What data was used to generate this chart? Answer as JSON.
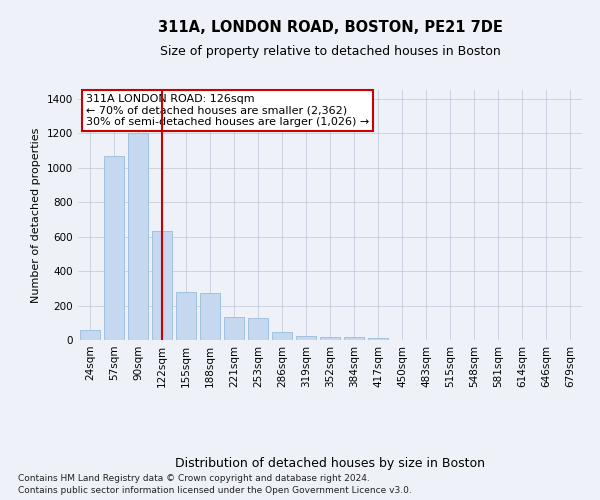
{
  "title1": "311A, LONDON ROAD, BOSTON, PE21 7DE",
  "title2": "Size of property relative to detached houses in Boston",
  "xlabel": "Distribution of detached houses by size in Boston",
  "ylabel": "Number of detached properties",
  "categories": [
    "24sqm",
    "57sqm",
    "90sqm",
    "122sqm",
    "155sqm",
    "188sqm",
    "221sqm",
    "253sqm",
    "286sqm",
    "319sqm",
    "352sqm",
    "384sqm",
    "417sqm",
    "450sqm",
    "483sqm",
    "515sqm",
    "548sqm",
    "581sqm",
    "614sqm",
    "646sqm",
    "679sqm"
  ],
  "values": [
    60,
    1070,
    1200,
    630,
    280,
    275,
    135,
    130,
    45,
    25,
    15,
    20,
    10,
    0,
    0,
    0,
    0,
    0,
    0,
    0,
    0
  ],
  "bar_color": "#c5d8f0",
  "bar_edge_color": "#8ab4d8",
  "marker_label": "311A LONDON ROAD: 126sqm",
  "annotation_line1": "← 70% of detached houses are smaller (2,362)",
  "annotation_line2": "30% of semi-detached houses are larger (1,026) →",
  "annotation_box_color": "#ffffff",
  "annotation_box_edge": "#cc0000",
  "marker_line_color": "#cc0000",
  "marker_line_index": 3.5,
  "ylim": [
    0,
    1450
  ],
  "yticks": [
    0,
    200,
    400,
    600,
    800,
    1000,
    1200,
    1400
  ],
  "footer1": "Contains HM Land Registry data © Crown copyright and database right 2024.",
  "footer2": "Contains public sector information licensed under the Open Government Licence v3.0.",
  "bg_color": "#eef2f8",
  "plot_bg_color": "#eef2f8",
  "title1_fontsize": 10.5,
  "title2_fontsize": 9,
  "ylabel_fontsize": 8,
  "xlabel_fontsize": 9,
  "tick_fontsize": 7.5,
  "footer_fontsize": 6.5,
  "annot_fontsize": 8
}
